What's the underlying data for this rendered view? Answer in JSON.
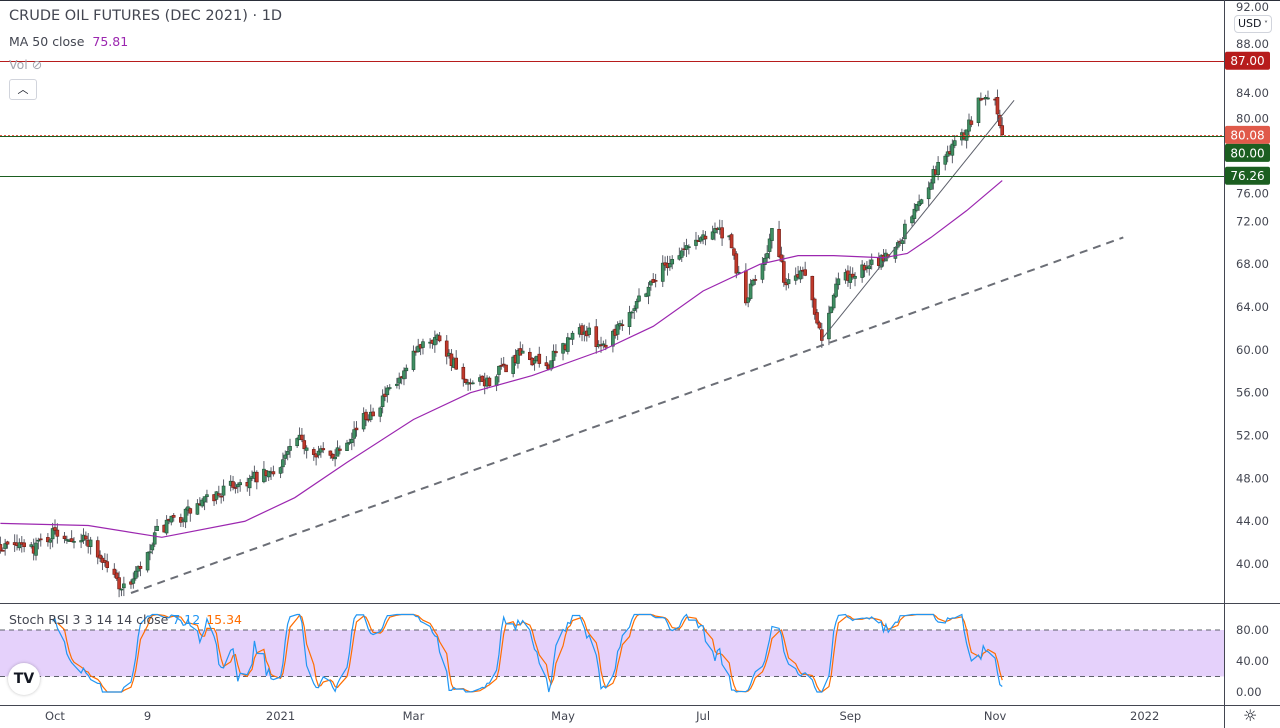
{
  "header": {
    "title": "CRUDE OIL FUTURES (DEC 2021) · 1D",
    "ma_label": "MA 50 close",
    "ma_value": "75.81",
    "vol_label": "Vol",
    "collapse_icon": "chevron-up-icon",
    "currency": "USD"
  },
  "stoch_rsi": {
    "label": "Stoch RSI 3 3 14 14 close",
    "k_value": "7.12",
    "d_value": "15.34",
    "k_color": "#2196f3",
    "d_color": "#ff6d00",
    "band_color": "#e1c9fa",
    "axis_labels": [
      "80.00",
      "40.00",
      "0.00"
    ],
    "band": [
      20,
      80
    ]
  },
  "colors": {
    "up": "#3f8f63",
    "down": "#c0392b",
    "ma": "#9c27b0",
    "resistance": "#c62828",
    "support": "#1b5e20"
  },
  "chart_data": {
    "type": "candlestick",
    "title": "CRUDE OIL FUTURES (DEC 2021) · 1D",
    "ylim": [
      37,
      92
    ],
    "y_tick_labels": [
      "92.00",
      "88.00",
      "84.00",
      "80.00",
      "76.00",
      "72.00",
      "68.00",
      "64.00",
      "60.00",
      "56.00",
      "52.00",
      "48.00",
      "44.00",
      "40.00"
    ],
    "x_tick_labels": [
      {
        "label": "Oct",
        "date": "2020-10-01"
      },
      {
        "label": "9",
        "date": "2020-11-09"
      },
      {
        "label": "2021",
        "date": "2021-01-04"
      },
      {
        "label": "Mar",
        "date": "2021-03-01"
      },
      {
        "label": "May",
        "date": "2021-05-03"
      },
      {
        "label": "Jul",
        "date": "2021-07-01"
      },
      {
        "label": "Sep",
        "date": "2021-09-01"
      },
      {
        "label": "Nov",
        "date": "2021-11-01"
      },
      {
        "label": "2022",
        "date": "2022-01-03"
      }
    ],
    "xlim": [
      "2020-09-08",
      "2022-02-10"
    ],
    "approx_close_path": [
      [
        "2020-08-20",
        42.0
      ],
      [
        "2020-09-21",
        41.5
      ],
      [
        "2020-10-01",
        43.0
      ],
      [
        "2020-10-15",
        42.2
      ],
      [
        "2020-10-30",
        37.6
      ],
      [
        "2020-11-09",
        40.5
      ],
      [
        "2020-11-13",
        43.0
      ],
      [
        "2020-11-30",
        45.4
      ],
      [
        "2020-12-15",
        47.4
      ],
      [
        "2020-12-31",
        48.4
      ],
      [
        "2021-01-11",
        51.5
      ],
      [
        "2021-01-25",
        50.0
      ],
      [
        "2021-02-10",
        54.0
      ],
      [
        "2021-02-25",
        57.5
      ],
      [
        "2021-03-05",
        61.0
      ],
      [
        "2021-03-12",
        61.2
      ],
      [
        "2021-03-23",
        56.5
      ],
      [
        "2021-04-01",
        57.0
      ],
      [
        "2021-04-15",
        59.5
      ],
      [
        "2021-04-26",
        58.5
      ],
      [
        "2021-05-10",
        62.0
      ],
      [
        "2021-05-20",
        60.5
      ],
      [
        "2021-06-01",
        64.0
      ],
      [
        "2021-06-15",
        68.0
      ],
      [
        "2021-06-30",
        70.5
      ],
      [
        "2021-07-06",
        71.5
      ],
      [
        "2021-07-12",
        70.0
      ],
      [
        "2021-07-19",
        64.5
      ],
      [
        "2021-07-28",
        69.5
      ],
      [
        "2021-07-30",
        71.0
      ],
      [
        "2021-08-05",
        66.0
      ],
      [
        "2021-08-12",
        67.8
      ],
      [
        "2021-08-20",
        61.5
      ],
      [
        "2021-08-27",
        66.5
      ],
      [
        "2021-09-10",
        67.8
      ],
      [
        "2021-09-20",
        69.5
      ],
      [
        "2021-09-28",
        73.0
      ],
      [
        "2021-10-06",
        76.5
      ],
      [
        "2021-10-12",
        78.5
      ],
      [
        "2021-10-20",
        80.5
      ],
      [
        "2021-10-26",
        83.5
      ],
      [
        "2021-11-01",
        83.6
      ],
      [
        "2021-11-03",
        81.0
      ],
      [
        "2021-11-04",
        80.08
      ]
    ],
    "ma50": {
      "name": "MA 50 close",
      "points": [
        [
          "2020-09-08",
          43.8
        ],
        [
          "2020-10-15",
          43.6
        ],
        [
          "2020-11-15",
          42.5
        ],
        [
          "2020-12-20",
          44.0
        ],
        [
          "2021-01-10",
          46.2
        ],
        [
          "2021-02-01",
          49.5
        ],
        [
          "2021-03-01",
          53.5
        ],
        [
          "2021-03-25",
          56.0
        ],
        [
          "2021-04-20",
          57.6
        ],
        [
          "2021-05-20",
          60.0
        ],
        [
          "2021-06-10",
          62.2
        ],
        [
          "2021-07-01",
          65.5
        ],
        [
          "2021-07-25",
          68.0
        ],
        [
          "2021-08-10",
          68.8
        ],
        [
          "2021-08-25",
          68.8
        ],
        [
          "2021-09-15",
          68.6
        ],
        [
          "2021-09-25",
          69.0
        ],
        [
          "2021-10-05",
          70.5
        ],
        [
          "2021-10-20",
          73.0
        ],
        [
          "2021-11-04",
          75.81
        ]
      ]
    },
    "trendlines": [
      {
        "style": "dashed",
        "from": [
          "2020-11-02",
          37.3
        ],
        "to": [
          "2021-12-25",
          70.5
        ]
      },
      {
        "style": "solid",
        "from": [
          "2021-08-20",
          61.0
        ],
        "to": [
          "2021-11-09",
          83.3
        ]
      }
    ],
    "horizontal_levels": [
      {
        "value": 87.0,
        "label": "87.00",
        "color": "#b71c1c",
        "style": "solid"
      },
      {
        "value": 80.08,
        "label": "80.08",
        "color": "#e05a4a",
        "style": "dotted"
      },
      {
        "value": 80.0,
        "label": "80.00",
        "color": "#1b5e20",
        "style": "solid"
      },
      {
        "value": 76.26,
        "label": "76.26",
        "color": "#1b5e20",
        "style": "solid"
      }
    ]
  }
}
